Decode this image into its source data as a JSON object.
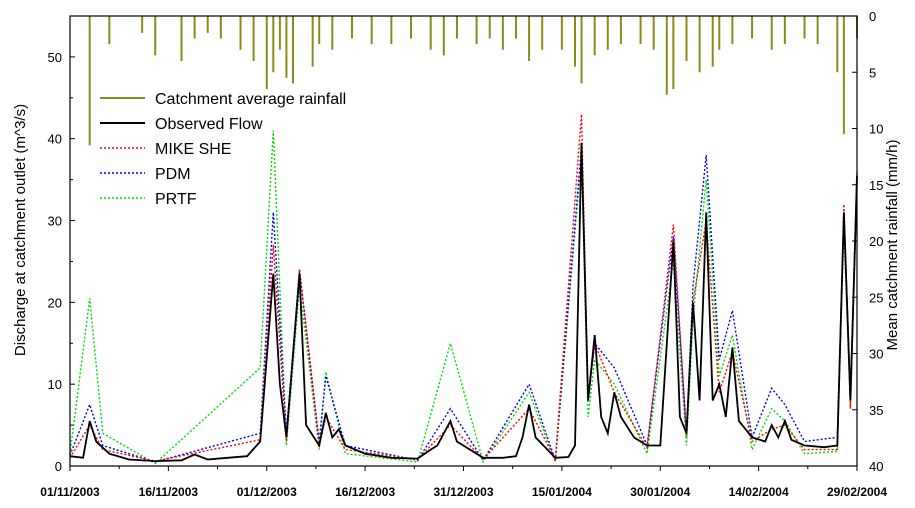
{
  "chart_data": {
    "type": "line",
    "x_labels": [
      "01/11/2003",
      "16/11/2003",
      "01/12/2003",
      "16/12/2003",
      "31/12/2003",
      "15/01/2004",
      "30/01/2004",
      "14/02/2004",
      "29/02/2004"
    ],
    "xlim": [
      "2003-11-01",
      "2004-02-29"
    ],
    "ylabel": "Discharge at catchment outlet (m^3/s)",
    "ylim": [
      0,
      55
    ],
    "y_ticks": [
      "0",
      "10",
      "20",
      "30",
      "40",
      "50"
    ],
    "y2label": "Mean catchment rainfall (mm/h)",
    "y2lim": [
      40,
      0
    ],
    "y2_ticks": [
      "0",
      "5",
      "10",
      "15",
      "20",
      "25",
      "30",
      "35",
      "40"
    ],
    "legend": {
      "placement": "upper-left",
      "entries": [
        {
          "label": "Catchment average rainfall",
          "color": "#8b8b1a",
          "style": "solid"
        },
        {
          "label": "Observed Flow",
          "color": "#000000",
          "style": "solid"
        },
        {
          "label": "MIKE SHE",
          "color": "#ff0000",
          "style": "dotted"
        },
        {
          "label": "PDM",
          "color": "#0000ff",
          "style": "dotted"
        },
        {
          "label": "PRTF",
          "color": "#00dd00",
          "style": "dotted"
        }
      ]
    },
    "series": [
      {
        "name": "Observed Flow",
        "color": "#000000",
        "points": [
          [
            "2003-11-01",
            1.2
          ],
          [
            "2003-11-03",
            1.0
          ],
          [
            "2003-11-04",
            5.5
          ],
          [
            "2003-11-05",
            3.0
          ],
          [
            "2003-11-07",
            1.5
          ],
          [
            "2003-11-10",
            0.8
          ],
          [
            "2003-11-14",
            0.6
          ],
          [
            "2003-11-18",
            0.7
          ],
          [
            "2003-11-20",
            1.4
          ],
          [
            "2003-11-22",
            0.8
          ],
          [
            "2003-11-25",
            1.0
          ],
          [
            "2003-11-28",
            1.2
          ],
          [
            "2003-11-30",
            3.0
          ],
          [
            "2003-12-02",
            23.5
          ],
          [
            "2003-12-03",
            10
          ],
          [
            "2003-12-04",
            3.5
          ],
          [
            "2003-12-06",
            23.5
          ],
          [
            "2003-12-07",
            5
          ],
          [
            "2003-12-09",
            2.5
          ],
          [
            "2003-12-10",
            6.5
          ],
          [
            "2003-12-11",
            3.5
          ],
          [
            "2003-12-12",
            4.5
          ],
          [
            "2003-12-13",
            2.5
          ],
          [
            "2003-12-16",
            1.5
          ],
          [
            "2003-12-20",
            1.0
          ],
          [
            "2003-12-24",
            0.9
          ],
          [
            "2003-12-26",
            2.0
          ],
          [
            "2003-12-27",
            2.5
          ],
          [
            "2003-12-29",
            5.5
          ],
          [
            "2003-12-30",
            3.0
          ],
          [
            "2004-01-03",
            1.0
          ],
          [
            "2004-01-06",
            1.0
          ],
          [
            "2004-01-08",
            1.2
          ],
          [
            "2004-01-09",
            3.5
          ],
          [
            "2004-01-10",
            7.5
          ],
          [
            "2004-01-11",
            3.5
          ],
          [
            "2004-01-14",
            1.0
          ],
          [
            "2004-01-16",
            1.1
          ],
          [
            "2004-01-17",
            2.5
          ],
          [
            "2004-01-18",
            39.5
          ],
          [
            "2004-01-19",
            8
          ],
          [
            "2004-01-20",
            16
          ],
          [
            "2004-01-21",
            6
          ],
          [
            "2004-01-22",
            4
          ],
          [
            "2004-01-23",
            9
          ],
          [
            "2004-01-24",
            6
          ],
          [
            "2004-01-26",
            3.5
          ],
          [
            "2004-01-28",
            2.5
          ],
          [
            "2004-01-30",
            2.5
          ],
          [
            "2004-02-01",
            27.5
          ],
          [
            "2004-02-02",
            6
          ],
          [
            "2004-02-03",
            4
          ],
          [
            "2004-02-04",
            20
          ],
          [
            "2004-02-05",
            8
          ],
          [
            "2004-02-06",
            31
          ],
          [
            "2004-02-07",
            8
          ],
          [
            "2004-02-08",
            10
          ],
          [
            "2004-02-09",
            6
          ],
          [
            "2004-02-10",
            14.5
          ],
          [
            "2004-02-11",
            5.5
          ],
          [
            "2004-02-13",
            3.5
          ],
          [
            "2004-02-15",
            3.0
          ],
          [
            "2004-02-16",
            5.0
          ],
          [
            "2004-02-17",
            3.5
          ],
          [
            "2004-02-18",
            5.5
          ],
          [
            "2004-02-19",
            3.2
          ],
          [
            "2004-02-21",
            2.5
          ],
          [
            "2004-02-24",
            2.3
          ],
          [
            "2004-02-26",
            2.5
          ],
          [
            "2004-02-27",
            31
          ],
          [
            "2004-02-28",
            8
          ],
          [
            "2004-02-29",
            35.5
          ]
        ]
      },
      {
        "name": "MIKE SHE",
        "color": "#ff0000",
        "points": [
          [
            "2003-11-01",
            1.0
          ],
          [
            "2003-11-04",
            5.0
          ],
          [
            "2003-11-06",
            2.0
          ],
          [
            "2003-11-14",
            0.6
          ],
          [
            "2003-11-30",
            3.2
          ],
          [
            "2003-12-02",
            27
          ],
          [
            "2003-12-04",
            3.0
          ],
          [
            "2003-12-06",
            24
          ],
          [
            "2003-12-09",
            2.5
          ],
          [
            "2003-12-10",
            6.0
          ],
          [
            "2003-12-13",
            2.0
          ],
          [
            "2003-12-24",
            0.8
          ],
          [
            "2003-12-29",
            5.0
          ],
          [
            "2004-01-03",
            0.8
          ],
          [
            "2004-01-10",
            7.0
          ],
          [
            "2004-01-14",
            0.8
          ],
          [
            "2004-01-18",
            43
          ],
          [
            "2004-01-19",
            8
          ],
          [
            "2004-01-20",
            15
          ],
          [
            "2004-01-23",
            9
          ],
          [
            "2004-01-28",
            2.2
          ],
          [
            "2004-02-01",
            29.5
          ],
          [
            "2004-02-03",
            3.5
          ],
          [
            "2004-02-04",
            20
          ],
          [
            "2004-02-06",
            30
          ],
          [
            "2004-02-08",
            9
          ],
          [
            "2004-02-10",
            14
          ],
          [
            "2004-02-13",
            3.0
          ],
          [
            "2004-02-16",
            4.5
          ],
          [
            "2004-02-18",
            5.0
          ],
          [
            "2004-02-21",
            2.0
          ],
          [
            "2004-02-26",
            2.0
          ],
          [
            "2004-02-27",
            32
          ],
          [
            "2004-02-28",
            7
          ],
          [
            "2004-02-29",
            35
          ]
        ]
      },
      {
        "name": "PDM",
        "color": "#0000ff",
        "points": [
          [
            "2003-11-01",
            1.3
          ],
          [
            "2003-11-04",
            7.5
          ],
          [
            "2003-11-06",
            2.5
          ],
          [
            "2003-11-14",
            0.5
          ],
          [
            "2003-11-30",
            4.0
          ],
          [
            "2003-12-02",
            31
          ],
          [
            "2003-12-04",
            4.0
          ],
          [
            "2003-12-06",
            24
          ],
          [
            "2003-12-09",
            3.0
          ],
          [
            "2003-12-10",
            11
          ],
          [
            "2003-12-13",
            2.5
          ],
          [
            "2003-12-24",
            0.7
          ],
          [
            "2003-12-29",
            7.0
          ],
          [
            "2004-01-03",
            0.7
          ],
          [
            "2004-01-10",
            10
          ],
          [
            "2004-01-14",
            0.7
          ],
          [
            "2004-01-18",
            39
          ],
          [
            "2004-01-19",
            8
          ],
          [
            "2004-01-20",
            15
          ],
          [
            "2004-01-23",
            12
          ],
          [
            "2004-01-28",
            2.5
          ],
          [
            "2004-02-01",
            28
          ],
          [
            "2004-02-03",
            4
          ],
          [
            "2004-02-04",
            22
          ],
          [
            "2004-02-06",
            38
          ],
          [
            "2004-02-08",
            13
          ],
          [
            "2004-02-10",
            19
          ],
          [
            "2004-02-13",
            3.5
          ],
          [
            "2004-02-16",
            9.5
          ],
          [
            "2004-02-18",
            7.5
          ],
          [
            "2004-02-21",
            3.0
          ],
          [
            "2004-02-26",
            3.5
          ],
          [
            "2004-02-27",
            31
          ],
          [
            "2004-02-28",
            9
          ],
          [
            "2004-02-29",
            36
          ]
        ]
      },
      {
        "name": "PRTF",
        "color": "#00dd00",
        "points": [
          [
            "2003-11-01",
            1.5
          ],
          [
            "2003-11-04",
            20.5
          ],
          [
            "2003-11-06",
            4.0
          ],
          [
            "2003-11-14",
            0.3
          ],
          [
            "2003-11-30",
            12
          ],
          [
            "2003-12-02",
            41
          ],
          [
            "2003-12-04",
            2.5
          ],
          [
            "2003-12-06",
            22
          ],
          [
            "2003-12-09",
            2.0
          ],
          [
            "2003-12-10",
            11.5
          ],
          [
            "2003-12-13",
            1.5
          ],
          [
            "2003-12-24",
            0.5
          ],
          [
            "2003-12-29",
            15
          ],
          [
            "2004-01-03",
            0.5
          ],
          [
            "2004-01-10",
            9
          ],
          [
            "2004-01-14",
            0.5
          ],
          [
            "2004-01-18",
            38
          ],
          [
            "2004-01-19",
            6
          ],
          [
            "2004-01-20",
            13
          ],
          [
            "2004-01-23",
            10
          ],
          [
            "2004-01-28",
            1.5
          ],
          [
            "2004-02-01",
            25
          ],
          [
            "2004-02-03",
            2.5
          ],
          [
            "2004-02-04",
            18
          ],
          [
            "2004-02-06",
            35
          ],
          [
            "2004-02-08",
            11
          ],
          [
            "2004-02-10",
            16
          ],
          [
            "2004-02-13",
            2.0
          ],
          [
            "2004-02-16",
            7.0
          ],
          [
            "2004-02-18",
            5.5
          ],
          [
            "2004-02-21",
            1.5
          ],
          [
            "2004-02-26",
            1.8
          ],
          [
            "2004-02-27",
            29
          ],
          [
            "2004-02-28",
            7
          ],
          [
            "2004-02-29",
            34
          ]
        ]
      }
    ],
    "rainfall": {
      "name": "Catchment average rainfall",
      "color": "#8b8b1a",
      "bars": [
        [
          "2003-11-04",
          11.5
        ],
        [
          "2003-11-07",
          2.5
        ],
        [
          "2003-11-12",
          1.5
        ],
        [
          "2003-11-14",
          3.5
        ],
        [
          "2003-11-18",
          4.0
        ],
        [
          "2003-11-20",
          2.0
        ],
        [
          "2003-11-22",
          1.5
        ],
        [
          "2003-11-24",
          2.0
        ],
        [
          "2003-11-27",
          3.0
        ],
        [
          "2003-11-29",
          4.0
        ],
        [
          "2003-12-01",
          6.5
        ],
        [
          "2003-12-02",
          5.0
        ],
        [
          "2003-12-03",
          3.0
        ],
        [
          "2003-12-04",
          5.5
        ],
        [
          "2003-12-05",
          6.0
        ],
        [
          "2003-12-08",
          4.5
        ],
        [
          "2003-12-09",
          2.5
        ],
        [
          "2003-12-11",
          3.0
        ],
        [
          "2003-12-14",
          2.0
        ],
        [
          "2003-12-17",
          2.5
        ],
        [
          "2003-12-20",
          2.5
        ],
        [
          "2003-12-23",
          2.0
        ],
        [
          "2003-12-26",
          3.0
        ],
        [
          "2003-12-28",
          3.5
        ],
        [
          "2003-12-30",
          2.0
        ],
        [
          "2004-01-02",
          2.5
        ],
        [
          "2004-01-04",
          2.0
        ],
        [
          "2004-01-06",
          3.0
        ],
        [
          "2004-01-08",
          2.0
        ],
        [
          "2004-01-10",
          4.0
        ],
        [
          "2004-01-12",
          3.0
        ],
        [
          "2004-01-15",
          3.0
        ],
        [
          "2004-01-17",
          4.5
        ],
        [
          "2004-01-18",
          6.0
        ],
        [
          "2004-01-20",
          3.5
        ],
        [
          "2004-01-22",
          3.0
        ],
        [
          "2004-01-24",
          2.5
        ],
        [
          "2004-01-27",
          2.5
        ],
        [
          "2004-01-29",
          3.0
        ],
        [
          "2004-01-31",
          7.0
        ],
        [
          "2004-02-01",
          6.5
        ],
        [
          "2004-02-03",
          4.0
        ],
        [
          "2004-02-05",
          5.0
        ],
        [
          "2004-02-07",
          4.5
        ],
        [
          "2004-02-08",
          3.0
        ],
        [
          "2004-02-10",
          2.5
        ],
        [
          "2004-02-13",
          2.0
        ],
        [
          "2004-02-16",
          3.0
        ],
        [
          "2004-02-18",
          2.5
        ],
        [
          "2004-02-21",
          2.0
        ],
        [
          "2004-02-23",
          2.5
        ],
        [
          "2004-02-26",
          5.0
        ],
        [
          "2004-02-27",
          10.5
        ],
        [
          "2004-02-29",
          2.0
        ]
      ]
    }
  }
}
